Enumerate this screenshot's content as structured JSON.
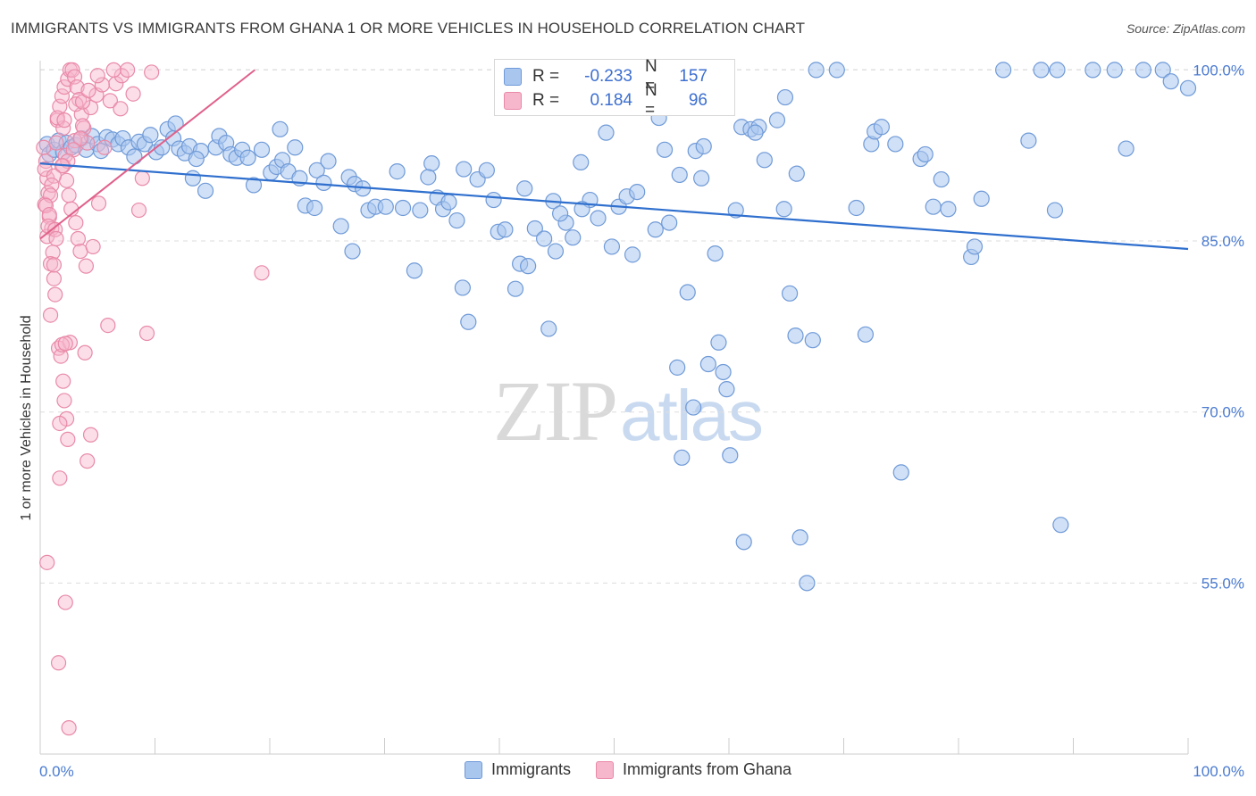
{
  "title": "IMMIGRANTS VS IMMIGRANTS FROM GHANA 1 OR MORE VEHICLES IN HOUSEHOLD CORRELATION CHART",
  "source": "Source: ZipAtlas.com",
  "watermark": {
    "zip": "ZIP",
    "atlas": "atlas"
  },
  "legend_top": {
    "rows": [
      {
        "r_label": "R =",
        "r_value": "-0.233",
        "n_label": "N =",
        "n_value": "157"
      },
      {
        "r_label": "R =",
        "r_value": "0.184",
        "n_label": "N =",
        "n_value": "96"
      }
    ]
  },
  "legend_bottom": {
    "items": [
      "Immigrants",
      "Immigrants from Ghana"
    ]
  },
  "colors": {
    "blue_fill": "#a9c6ef",
    "blue_stroke": "#6f9ad8",
    "blue_line": "#2f6fce",
    "pink_fill": "#f6b6cb",
    "pink_stroke": "#e98aa8",
    "pink_line": "#e0608a",
    "tick_text": "#4b7bd0",
    "grid": "#dddddd"
  },
  "chart_data": {
    "type": "scatter",
    "title": "IMMIGRANTS VS IMMIGRANTS FROM GHANA 1 OR MORE VEHICLES IN HOUSEHOLD CORRELATION CHART",
    "xlabel": "",
    "ylabel": "1 or more Vehicles in Household",
    "xlim": [
      0,
      100
    ],
    "ylim": [
      40,
      100.5
    ],
    "x_tick_labels": [
      "0.0%",
      "100.0%"
    ],
    "y_ticks": [
      55,
      70,
      85,
      100
    ],
    "y_tick_labels": [
      "55.0%",
      "70.0%",
      "85.0%",
      "100.0%"
    ],
    "grid": true,
    "legend_position": "top-center",
    "series": [
      {
        "name": "Immigrants",
        "trend": {
          "x": [
            0,
            100
          ],
          "y": [
            91.8,
            84.3
          ]
        },
        "points": [
          [
            0.6,
            93.5
          ],
          [
            0.8,
            92.6
          ],
          [
            1.2,
            93.0
          ],
          [
            1.6,
            93.8
          ],
          [
            2.0,
            92.8
          ],
          [
            2.3,
            93.6
          ],
          [
            2.7,
            93.2
          ],
          [
            3.1,
            93.4
          ],
          [
            3.6,
            94.0
          ],
          [
            4.0,
            93.0
          ],
          [
            4.5,
            94.2
          ],
          [
            5.0,
            93.5
          ],
          [
            5.3,
            92.9
          ],
          [
            5.8,
            94.1
          ],
          [
            6.3,
            93.9
          ],
          [
            6.8,
            93.5
          ],
          [
            7.2,
            94.0
          ],
          [
            7.7,
            93.2
          ],
          [
            8.2,
            92.4
          ],
          [
            8.6,
            93.7
          ],
          [
            9.1,
            93.5
          ],
          [
            9.6,
            94.3
          ],
          [
            10.1,
            92.8
          ],
          [
            10.6,
            93.2
          ],
          [
            11.1,
            94.8
          ],
          [
            11.6,
            94.0
          ],
          [
            12.1,
            93.1
          ],
          [
            12.6,
            92.7
          ],
          [
            13.0,
            93.3
          ],
          [
            13.3,
            90.5
          ],
          [
            14.0,
            92.9
          ],
          [
            14.4,
            89.4
          ],
          [
            15.3,
            93.2
          ],
          [
            15.6,
            94.2
          ],
          [
            16.2,
            93.6
          ],
          [
            16.6,
            92.6
          ],
          [
            17.1,
            92.3
          ],
          [
            17.6,
            93.0
          ],
          [
            18.1,
            92.3
          ],
          [
            18.6,
            89.9
          ],
          [
            19.3,
            93.0
          ],
          [
            20.1,
            91.0
          ],
          [
            20.6,
            91.5
          ],
          [
            21.1,
            92.1
          ],
          [
            21.6,
            91.1
          ],
          [
            22.2,
            93.2
          ],
          [
            22.6,
            90.5
          ],
          [
            23.1,
            88.1
          ],
          [
            23.9,
            87.9
          ],
          [
            24.1,
            91.2
          ],
          [
            24.7,
            90.1
          ],
          [
            25.1,
            92.0
          ],
          [
            26.2,
            86.3
          ],
          [
            26.9,
            90.6
          ],
          [
            27.4,
            90.0
          ],
          [
            28.1,
            89.6
          ],
          [
            28.6,
            87.7
          ],
          [
            29.2,
            88.0
          ],
          [
            30.1,
            88.0
          ],
          [
            31.1,
            91.1
          ],
          [
            31.6,
            87.9
          ],
          [
            32.6,
            82.4
          ],
          [
            33.1,
            87.7
          ],
          [
            34.1,
            91.8
          ],
          [
            34.6,
            88.8
          ],
          [
            35.1,
            87.8
          ],
          [
            35.6,
            88.4
          ],
          [
            36.3,
            86.8
          ],
          [
            36.8,
            80.9
          ],
          [
            37.3,
            77.9
          ],
          [
            38.1,
            90.4
          ],
          [
            38.9,
            91.2
          ],
          [
            39.5,
            88.6
          ],
          [
            39.9,
            85.8
          ],
          [
            40.5,
            86.0
          ],
          [
            41.4,
            80.8
          ],
          [
            41.8,
            83.0
          ],
          [
            42.2,
            89.6
          ],
          [
            43.1,
            86.1
          ],
          [
            43.9,
            85.2
          ],
          [
            44.3,
            77.3
          ],
          [
            44.9,
            84.1
          ],
          [
            45.8,
            86.6
          ],
          [
            46.4,
            85.3
          ],
          [
            47.1,
            91.9
          ],
          [
            47.9,
            88.6
          ],
          [
            48.6,
            87.0
          ],
          [
            49.3,
            94.5
          ],
          [
            49.8,
            84.5
          ],
          [
            50.4,
            88.0
          ],
          [
            51.1,
            88.9
          ],
          [
            51.6,
            83.8
          ],
          [
            52.0,
            89.3
          ],
          [
            53.9,
            95.8
          ],
          [
            54.4,
            93.0
          ],
          [
            54.8,
            86.6
          ],
          [
            55.5,
            73.9
          ],
          [
            55.9,
            66.0
          ],
          [
            56.4,
            80.5
          ],
          [
            56.9,
            70.4
          ],
          [
            57.1,
            92.9
          ],
          [
            57.6,
            90.5
          ],
          [
            58.2,
            74.2
          ],
          [
            58.8,
            83.9
          ],
          [
            59.1,
            76.1
          ],
          [
            59.8,
            72.0
          ],
          [
            60.1,
            66.2
          ],
          [
            61.1,
            95.0
          ],
          [
            61.9,
            94.8
          ],
          [
            62.6,
            95.0
          ],
          [
            63.1,
            92.1
          ],
          [
            64.2,
            95.6
          ],
          [
            64.8,
            87.8
          ],
          [
            65.3,
            80.4
          ],
          [
            65.9,
            90.9
          ],
          [
            65.8,
            76.7
          ],
          [
            66.2,
            59.0
          ],
          [
            66.8,
            55.0
          ],
          [
            67.6,
            100.0
          ],
          [
            69.4,
            100.0
          ],
          [
            71.1,
            87.9
          ],
          [
            72.4,
            93.5
          ],
          [
            72.7,
            94.6
          ],
          [
            73.3,
            95.0
          ],
          [
            74.5,
            93.5
          ],
          [
            75.0,
            64.7
          ],
          [
            76.7,
            92.2
          ],
          [
            77.1,
            92.6
          ],
          [
            77.8,
            88.0
          ],
          [
            78.5,
            90.4
          ],
          [
            79.1,
            87.8
          ],
          [
            81.1,
            83.6
          ],
          [
            81.4,
            84.5
          ],
          [
            83.9,
            100.0
          ],
          [
            87.2,
            100.0
          ],
          [
            88.6,
            100.0
          ],
          [
            93.6,
            100.0
          ],
          [
            88.4,
            87.7
          ],
          [
            91.7,
            100.0
          ],
          [
            96.1,
            100.0
          ],
          [
            100.0,
            98.4
          ],
          [
            86.1,
            93.8
          ],
          [
            94.6,
            93.1
          ],
          [
            97.8,
            100.0
          ],
          [
            62.3,
            94.5
          ],
          [
            55.7,
            90.8
          ],
          [
            47.2,
            87.8
          ],
          [
            36.9,
            91.3
          ],
          [
            44.7,
            88.5
          ],
          [
            42.5,
            82.8
          ],
          [
            88.9,
            60.1
          ],
          [
            67.3,
            76.3
          ],
          [
            57.8,
            93.3
          ],
          [
            64.9,
            97.6
          ],
          [
            98.5,
            99.0
          ],
          [
            13.6,
            92.2
          ],
          [
            59.5,
            73.5
          ],
          [
            53.6,
            86.0
          ],
          [
            60.6,
            87.7
          ],
          [
            45.3,
            87.4
          ],
          [
            20.9,
            94.8
          ],
          [
            11.8,
            95.3
          ],
          [
            27.2,
            84.1
          ],
          [
            33.8,
            90.6
          ],
          [
            61.3,
            58.6
          ],
          [
            71.9,
            76.8
          ],
          [
            82.0,
            88.7
          ]
        ]
      },
      {
        "name": "Immigrants from Ghana",
        "trend": {
          "x": [
            0,
            18.7
          ],
          "y": [
            85.2,
            100.0
          ]
        },
        "points": [
          [
            0.3,
            93.2
          ],
          [
            0.5,
            92.0
          ],
          [
            0.6,
            90.5
          ],
          [
            0.7,
            89.2
          ],
          [
            0.4,
            88.2
          ],
          [
            0.8,
            87.1
          ],
          [
            1.0,
            86.1
          ],
          [
            0.6,
            85.4
          ],
          [
            1.1,
            84.0
          ],
          [
            0.9,
            83.0
          ],
          [
            1.2,
            81.7
          ],
          [
            1.3,
            80.3
          ],
          [
            0.4,
            91.3
          ],
          [
            1.4,
            93.6
          ],
          [
            1.5,
            95.6
          ],
          [
            1.7,
            96.8
          ],
          [
            1.9,
            97.7
          ],
          [
            2.1,
            98.5
          ],
          [
            2.4,
            99.2
          ],
          [
            2.6,
            100.0
          ],
          [
            2.8,
            100.0
          ],
          [
            3.0,
            99.4
          ],
          [
            3.2,
            98.5
          ],
          [
            3.4,
            97.4
          ],
          [
            3.6,
            96.1
          ],
          [
            3.8,
            94.9
          ],
          [
            4.1,
            93.6
          ],
          [
            2.2,
            92.5
          ],
          [
            2.0,
            91.6
          ],
          [
            2.3,
            90.3
          ],
          [
            2.5,
            89.0
          ],
          [
            2.7,
            87.8
          ],
          [
            3.1,
            86.6
          ],
          [
            3.3,
            85.2
          ],
          [
            3.5,
            84.1
          ],
          [
            4.0,
            82.8
          ],
          [
            4.6,
            84.5
          ],
          [
            5.1,
            88.3
          ],
          [
            5.6,
            93.2
          ],
          [
            6.1,
            97.3
          ],
          [
            6.6,
            98.8
          ],
          [
            7.1,
            99.5
          ],
          [
            7.6,
            100.0
          ],
          [
            8.1,
            97.9
          ],
          [
            8.6,
            87.7
          ],
          [
            8.9,
            90.5
          ],
          [
            9.3,
            76.9
          ],
          [
            9.7,
            99.8
          ],
          [
            5.9,
            77.6
          ],
          [
            1.6,
            75.6
          ],
          [
            1.8,
            74.9
          ],
          [
            2.0,
            72.7
          ],
          [
            2.1,
            71.0
          ],
          [
            2.3,
            69.4
          ],
          [
            2.4,
            67.6
          ],
          [
            1.7,
            64.2
          ],
          [
            0.6,
            56.8
          ],
          [
            2.2,
            53.3
          ],
          [
            1.6,
            48.0
          ],
          [
            2.5,
            42.3
          ],
          [
            4.1,
            65.7
          ],
          [
            3.9,
            75.2
          ],
          [
            2.6,
            76.1
          ],
          [
            1.9,
            75.9
          ],
          [
            4.4,
            68.0
          ],
          [
            3.0,
            93.8
          ],
          [
            2.0,
            94.9
          ],
          [
            1.5,
            95.8
          ],
          [
            4.4,
            96.7
          ],
          [
            4.9,
            97.8
          ],
          [
            5.4,
            98.7
          ],
          [
            3.7,
            95.1
          ],
          [
            3.5,
            94.0
          ],
          [
            2.9,
            93.0
          ],
          [
            2.4,
            92.0
          ],
          [
            1.9,
            91.6
          ],
          [
            1.2,
            90.7
          ],
          [
            1.0,
            89.9
          ],
          [
            0.9,
            89.0
          ],
          [
            0.5,
            88.1
          ],
          [
            0.8,
            87.3
          ],
          [
            0.7,
            86.3
          ],
          [
            1.3,
            86.0
          ],
          [
            1.4,
            85.2
          ],
          [
            2.1,
            95.6
          ],
          [
            3.1,
            97.0
          ],
          [
            3.7,
            97.2
          ],
          [
            4.2,
            98.2
          ],
          [
            5.0,
            99.5
          ],
          [
            6.4,
            100.0
          ],
          [
            7.0,
            96.6
          ],
          [
            1.2,
            82.9
          ],
          [
            0.9,
            78.5
          ],
          [
            19.3,
            82.2
          ],
          [
            1.7,
            69.0
          ],
          [
            2.2,
            76.0
          ]
        ]
      }
    ]
  }
}
